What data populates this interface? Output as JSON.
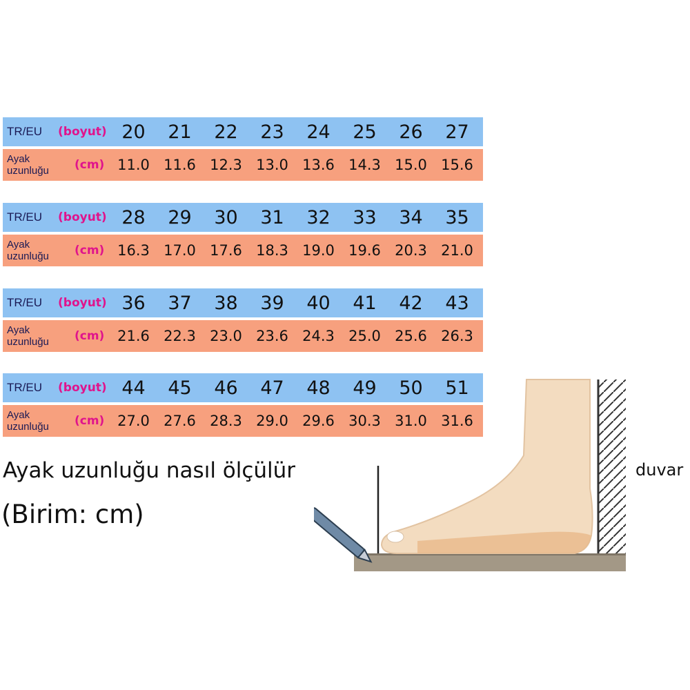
{
  "row_labels": {
    "size_label": "TR/EU",
    "size_unit": "(boyut)",
    "length_label_line1": "Ayak",
    "length_label_line2": "uzunluğu",
    "length_unit": "(cm)"
  },
  "tables": [
    {
      "sizes": [
        "20",
        "21",
        "22",
        "23",
        "24",
        "25",
        "26",
        "27"
      ],
      "lengths": [
        "11.0",
        "11.6",
        "12.3",
        "13.0",
        "13.6",
        "14.3",
        "15.0",
        "15.6"
      ]
    },
    {
      "sizes": [
        "28",
        "29",
        "30",
        "31",
        "32",
        "33",
        "34",
        "35"
      ],
      "lengths": [
        "16.3",
        "17.0",
        "17.6",
        "18.3",
        "19.0",
        "19.6",
        "20.3",
        "21.0"
      ]
    },
    {
      "sizes": [
        "36",
        "37",
        "38",
        "39",
        "40",
        "41",
        "42",
        "43"
      ],
      "lengths": [
        "21.6",
        "22.3",
        "23.0",
        "23.6",
        "24.3",
        "25.0",
        "25.6",
        "26.3"
      ]
    },
    {
      "sizes": [
        "44",
        "45",
        "46",
        "47",
        "48",
        "49",
        "50",
        "51"
      ],
      "lengths": [
        "27.0",
        "27.6",
        "28.3",
        "29.0",
        "29.6",
        "30.3",
        "31.0",
        "31.6"
      ]
    }
  ],
  "howto_title": "Ayak uzunluğu nasıl ölçülür",
  "unit_note": "(Birim: cm)",
  "wall_label": "duvar",
  "colors": {
    "size_row_bg": "#8ec2f2",
    "length_row_bg": "#f7a07e",
    "unit_text": "#e0148c"
  }
}
